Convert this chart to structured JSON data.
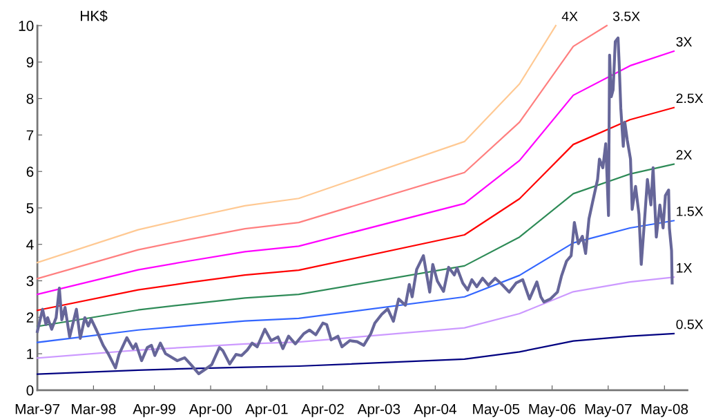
{
  "chart_data": {
    "type": "line",
    "ylabel": "HK$",
    "xlim": [
      "1997-03-01",
      "2008-09-27"
    ],
    "ylim": [
      0,
      10
    ],
    "xticks": [
      {
        "value": "1997-03-01",
        "label": "Mar-97"
      },
      {
        "value": "1998-03-01",
        "label": "Mar-98"
      },
      {
        "value": "1999-04-01",
        "label": "Apr-99"
      },
      {
        "value": "2000-04-01",
        "label": "Apr-00"
      },
      {
        "value": "2001-04-01",
        "label": "Apr-01"
      },
      {
        "value": "2002-04-01",
        "label": "Apr-02"
      },
      {
        "value": "2003-04-01",
        "label": "Apr-03"
      },
      {
        "value": "2004-04-01",
        "label": "Apr-04"
      },
      {
        "value": "2005-05-01",
        "label": "May-05"
      },
      {
        "value": "2006-05-01",
        "label": "May-06"
      },
      {
        "value": "2007-05-01",
        "label": "May-07"
      },
      {
        "value": "2008-05-01",
        "label": "May-08"
      }
    ],
    "yticks": [
      0,
      1,
      2,
      3,
      4,
      5,
      6,
      7,
      8,
      9,
      10
    ],
    "marker": "none",
    "line_style": "solid",
    "series": [
      {
        "name": "0.5X",
        "color": "#000080",
        "x": [
          "1997-03-01",
          "1998-12-16",
          "1999-11-07",
          "2000-11-10",
          "2001-10-26",
          "2004-10-08",
          "2005-10-01",
          "2006-09-16",
          "2007-09-20",
          "2008-07-01"
        ],
        "values": [
          0.44,
          0.55,
          0.59,
          0.63,
          0.66,
          0.85,
          1.05,
          1.35,
          1.48,
          1.55
        ]
      },
      {
        "name": "1X",
        "color": "#cc99ff",
        "x": [
          "1997-03-01",
          "1998-12-16",
          "1999-11-07",
          "2000-11-10",
          "2001-10-26",
          "2004-10-08",
          "2005-10-01",
          "2006-09-16",
          "2007-09-20",
          "2008-07-01"
        ],
        "values": [
          0.88,
          1.1,
          1.18,
          1.27,
          1.32,
          1.71,
          2.1,
          2.7,
          2.97,
          3.1
        ]
      },
      {
        "name": "1.5X",
        "color": "#3366ff",
        "x": [
          "1997-03-01",
          "1998-12-16",
          "1999-11-07",
          "2000-11-10",
          "2001-10-26",
          "2004-10-08",
          "2005-10-01",
          "2006-09-16",
          "2007-09-20",
          "2008-07-01"
        ],
        "values": [
          1.31,
          1.65,
          1.77,
          1.9,
          1.97,
          2.56,
          3.15,
          4.04,
          4.45,
          4.65
        ]
      },
      {
        "name": "2X",
        "color": "#2e8b57",
        "x": [
          "1997-03-01",
          "1998-12-16",
          "1999-11-07",
          "2000-11-10",
          "2001-10-26",
          "2004-10-08",
          "2005-10-01",
          "2006-09-16",
          "2007-09-20",
          "2008-07-01"
        ],
        "values": [
          1.75,
          2.2,
          2.36,
          2.53,
          2.63,
          3.41,
          4.2,
          5.39,
          5.93,
          6.2
        ]
      },
      {
        "name": "2.5X",
        "color": "#ff0000",
        "x": [
          "1997-03-01",
          "1998-12-16",
          "1999-11-07",
          "2000-11-10",
          "2001-10-26",
          "2004-10-08",
          "2005-10-01",
          "2006-09-16",
          "2007-09-20",
          "2008-07-01"
        ],
        "values": [
          2.19,
          2.75,
          2.95,
          3.16,
          3.29,
          4.26,
          5.25,
          6.74,
          7.42,
          7.75
        ]
      },
      {
        "name": "3X",
        "color": "#ff00ff",
        "x": [
          "1997-03-01",
          "1998-12-16",
          "1999-11-07",
          "2000-11-10",
          "2001-10-26",
          "2004-10-08",
          "2005-10-01",
          "2006-09-16",
          "2007-09-20",
          "2008-07-01"
        ],
        "values": [
          2.63,
          3.3,
          3.54,
          3.8,
          3.95,
          5.12,
          6.3,
          8.09,
          8.9,
          9.3
        ]
      },
      {
        "name": "3.5X",
        "color": "#ff7f7f",
        "x": [
          "1997-03-01",
          "1998-12-16",
          "1999-11-07",
          "2000-11-10",
          "2001-10-26",
          "2004-10-08",
          "2005-10-01",
          "2006-09-16",
          "2007-04-22"
        ],
        "values": [
          3.06,
          3.85,
          4.13,
          4.43,
          4.6,
          5.97,
          7.35,
          9.43,
          10
        ]
      },
      {
        "name": "4X",
        "color": "#ffc993",
        "x": [
          "1997-03-01",
          "1998-12-16",
          "1999-11-07",
          "2000-11-10",
          "2001-10-26",
          "2004-10-08",
          "2005-10-01",
          "2006-05-25"
        ],
        "values": [
          3.5,
          4.4,
          4.72,
          5.06,
          5.26,
          6.82,
          8.4,
          10
        ]
      },
      {
        "color": "#666699",
        "x": [
          "1997-03-01",
          "1997-04-04",
          "1997-04-26",
          "1997-05-07",
          "1997-06-02",
          "1997-07-01",
          "1997-07-22",
          "1997-08-07",
          "1997-08-28",
          "1997-09-27",
          "1997-11-10",
          "1997-12-05",
          "1998-01-04",
          "1998-01-26",
          "1998-02-14",
          "1998-03-20",
          "1998-05-03",
          "1998-06-05",
          "1998-07-22",
          "1998-08-14",
          "1998-10-04",
          "1998-11-14",
          "1998-12-02",
          "1999-01-08",
          "1999-02-14",
          "1999-03-13",
          "1999-04-04",
          "1999-05-10",
          "1999-06-13",
          "1999-08-28",
          "1999-10-15",
          "1999-11-25",
          "2000-01-15",
          "2000-02-25",
          "2000-04-08",
          "2000-05-28",
          "2000-06-20",
          "2000-08-03",
          "2000-09-13",
          "2000-10-19",
          "2000-11-25",
          "2000-12-27",
          "2001-01-29",
          "2001-03-20",
          "2001-04-29",
          "2001-06-13",
          "2001-07-15",
          "2001-08-21",
          "2001-10-04",
          "2001-11-28",
          "2002-01-04",
          "2002-02-14",
          "2002-04-01",
          "2002-04-26",
          "2002-05-25",
          "2002-07-08",
          "2002-08-03",
          "2002-09-23",
          "2002-11-10",
          "2002-12-23",
          "2003-02-07",
          "2003-03-05",
          "2003-04-19",
          "2003-05-28",
          "2003-07-04",
          "2003-08-07",
          "2003-09-20",
          "2003-10-15",
          "2003-11-03",
          "2003-12-02",
          "2004-01-15",
          "2004-02-25",
          "2004-03-16",
          "2004-04-15",
          "2004-05-25",
          "2004-06-27",
          "2004-08-03",
          "2004-08-21",
          "2004-09-27",
          "2004-10-29",
          "2004-11-25",
          "2004-12-27",
          "2005-02-03",
          "2005-03-13",
          "2005-04-26",
          "2005-06-09",
          "2005-07-26",
          "2005-09-09",
          "2005-10-22",
          "2005-12-05",
          "2006-01-22",
          "2006-02-17",
          "2006-03-09",
          "2006-04-19",
          "2006-06-05",
          "2006-07-01",
          "2006-08-03",
          "2006-09-02",
          "2006-09-23",
          "2006-10-19",
          "2006-11-14",
          "2006-12-05",
          "2006-12-27",
          "2007-01-19",
          "2007-02-21",
          "2007-03-05",
          "2007-03-27",
          "2007-04-15",
          "2007-04-22",
          "2007-05-03",
          "2007-05-10",
          "2007-05-21",
          "2007-06-02",
          "2007-06-16",
          "2007-07-04",
          "2007-07-11",
          "2007-07-22",
          "2007-08-07",
          "2007-08-17",
          "2007-09-02",
          "2007-09-23",
          "2007-10-04",
          "2007-10-26",
          "2007-11-17",
          "2007-12-02",
          "2007-12-23",
          "2008-01-11",
          "2008-02-03",
          "2008-02-17",
          "2008-03-09",
          "2008-04-01",
          "2008-04-22",
          "2008-05-07",
          "2008-05-28",
          "2008-06-02",
          "2008-06-16",
          "2008-06-20"
        ],
        "values": [
          1.61,
          2.22,
          1.8,
          1.99,
          1.67,
          1.99,
          2.8,
          1.93,
          2.27,
          1.46,
          2.22,
          1.42,
          1.99,
          1.76,
          1.95,
          1.65,
          1.23,
          1.0,
          0.61,
          0.98,
          1.44,
          1.14,
          1.27,
          0.81,
          1.17,
          1.23,
          0.95,
          1.29,
          1.0,
          0.81,
          0.89,
          0.7,
          0.45,
          0.57,
          0.7,
          1.17,
          1.08,
          0.72,
          0.98,
          0.95,
          1.1,
          1.29,
          1.19,
          1.67,
          1.36,
          1.46,
          1.14,
          1.48,
          1.27,
          1.55,
          1.65,
          1.52,
          1.84,
          1.8,
          1.38,
          1.48,
          1.19,
          1.36,
          1.33,
          1.23,
          1.55,
          1.84,
          2.08,
          2.23,
          1.89,
          2.5,
          2.33,
          2.9,
          2.56,
          3.31,
          3.69,
          2.69,
          3.45,
          2.99,
          2.71,
          3.37,
          3.16,
          3.35,
          2.94,
          2.75,
          3.03,
          2.84,
          3.07,
          2.88,
          3.07,
          2.9,
          2.69,
          2.94,
          3.03,
          2.5,
          2.97,
          2.56,
          2.42,
          2.5,
          2.69,
          3.13,
          3.54,
          3.69,
          4.6,
          4.02,
          4.22,
          3.75,
          4.7,
          5.15,
          5.78,
          6.34,
          6.1,
          6.76,
          6.02,
          4.79,
          9.19,
          8.05,
          8.24,
          9.56,
          9.66,
          9.0,
          7.73,
          6.69,
          7.35,
          6.86,
          6.34,
          4.96,
          5.59,
          4.83,
          3.45,
          4.64,
          5.78,
          5.08,
          6.1,
          4.2,
          5.08,
          4.45,
          5.34,
          5.49,
          4.45,
          3.83,
          2.94
        ]
      }
    ]
  }
}
